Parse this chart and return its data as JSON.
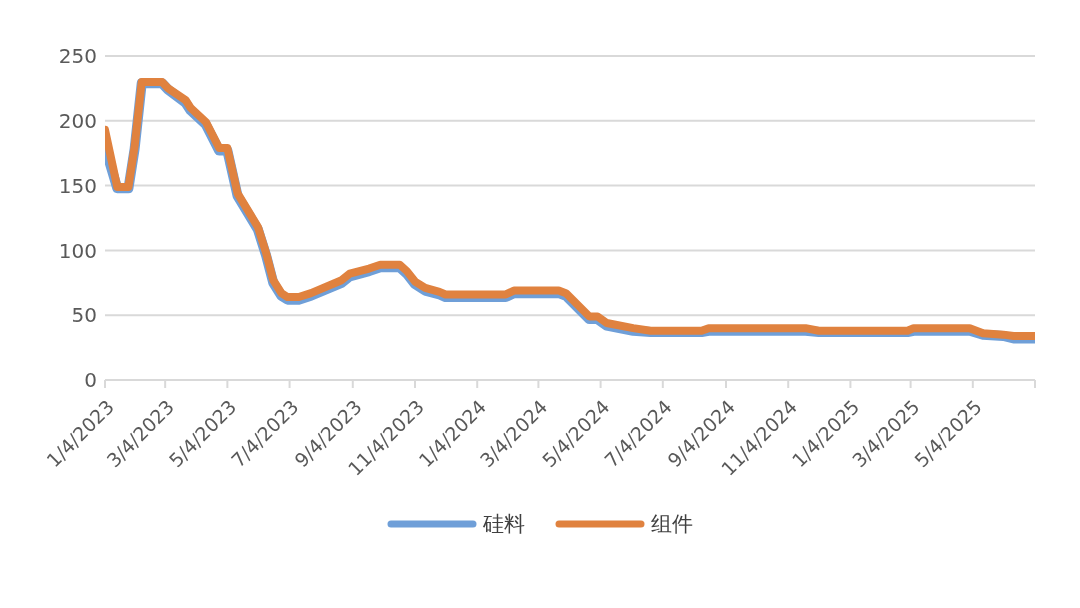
{
  "chart_data": {
    "type": "line",
    "x": [
      "2023-01-04",
      "2023-01-16",
      "2023-01-27",
      "2023-02-02",
      "2023-02-09",
      "2023-03-01",
      "2023-03-07",
      "2023-03-24",
      "2023-03-29",
      "2023-04-13",
      "2023-04-26",
      "2023-05-04",
      "2023-05-14",
      "2023-06-03",
      "2023-06-11",
      "2023-06-18",
      "2023-06-26",
      "2023-07-02",
      "2023-07-13",
      "2023-07-25",
      "2023-08-24",
      "2023-09-01",
      "2023-09-20",
      "2023-10-01",
      "2023-10-20",
      "2023-10-27",
      "2023-11-04",
      "2023-11-14",
      "2023-11-28",
      "2023-12-04",
      "2024-02-01",
      "2024-02-09",
      "2024-03-24",
      "2024-03-31",
      "2024-04-23",
      "2024-05-01",
      "2024-05-10",
      "2024-06-05",
      "2024-06-22",
      "2024-08-11",
      "2024-08-18",
      "2024-11-21",
      "2024-12-04",
      "2025-03-01",
      "2025-03-07",
      "2025-05-01",
      "2025-05-14",
      "2025-06-03",
      "2025-06-13",
      "2025-07-04"
    ],
    "series": [
      {
        "name": "硅料",
        "color": "#6f9fd8",
        "values": [
          180,
          148,
          148,
          178,
          229,
          229,
          224,
          214,
          208,
          197,
          177,
          177,
          142,
          116,
          96,
          75,
          65,
          62,
          62,
          65,
          75,
          80,
          84,
          87,
          87,
          82,
          74,
          69,
          66,
          64,
          64,
          67,
          67,
          65,
          47,
          47,
          42,
          38,
          37,
          37,
          38,
          38,
          37,
          37,
          38,
          38,
          35,
          34,
          32,
          32
        ]
      },
      {
        "name": "组件",
        "color": "#e0823f",
        "values": [
          193,
          149,
          149,
          180,
          230,
          230,
          225,
          216,
          210,
          199,
          179,
          179,
          144,
          118,
          98,
          77,
          67,
          64,
          64,
          67,
          77,
          82,
          86,
          89,
          89,
          84,
          76,
          71,
          68,
          66,
          66,
          69,
          69,
          67,
          49,
          49,
          44,
          40,
          38,
          38,
          40,
          40,
          38,
          38,
          40,
          40,
          36,
          35,
          34,
          34
        ]
      }
    ],
    "xlim": [
      "2023-01-04",
      "2025-07-04"
    ],
    "xticks": [
      {
        "value": "2023-01-04",
        "label": "1/4/2023"
      },
      {
        "value": "2023-03-04",
        "label": "3/4/2023"
      },
      {
        "value": "2023-05-04",
        "label": "5/4/2023"
      },
      {
        "value": "2023-07-04",
        "label": "7/4/2023"
      },
      {
        "value": "2023-09-04",
        "label": "9/4/2023"
      },
      {
        "value": "2023-11-04",
        "label": "11/4/2023"
      },
      {
        "value": "2024-01-04",
        "label": "1/4/2024"
      },
      {
        "value": "2024-03-04",
        "label": "3/4/2024"
      },
      {
        "value": "2024-05-04",
        "label": "5/4/2024"
      },
      {
        "value": "2024-07-04",
        "label": "7/4/2024"
      },
      {
        "value": "2024-09-04",
        "label": "9/4/2024"
      },
      {
        "value": "2024-11-04",
        "label": "11/4/2024"
      },
      {
        "value": "2025-01-04",
        "label": "1/4/2025"
      },
      {
        "value": "2025-03-04",
        "label": "3/4/2025"
      },
      {
        "value": "2025-05-04",
        "label": "5/4/2025"
      },
      {
        "value": "2025-07-04",
        "label": null
      }
    ],
    "ylim": [
      0,
      250
    ],
    "yticks": [
      0,
      50,
      100,
      150,
      200,
      250
    ],
    "grid": "y",
    "legend": "bottom",
    "marker": "none",
    "line_style": "solid"
  }
}
